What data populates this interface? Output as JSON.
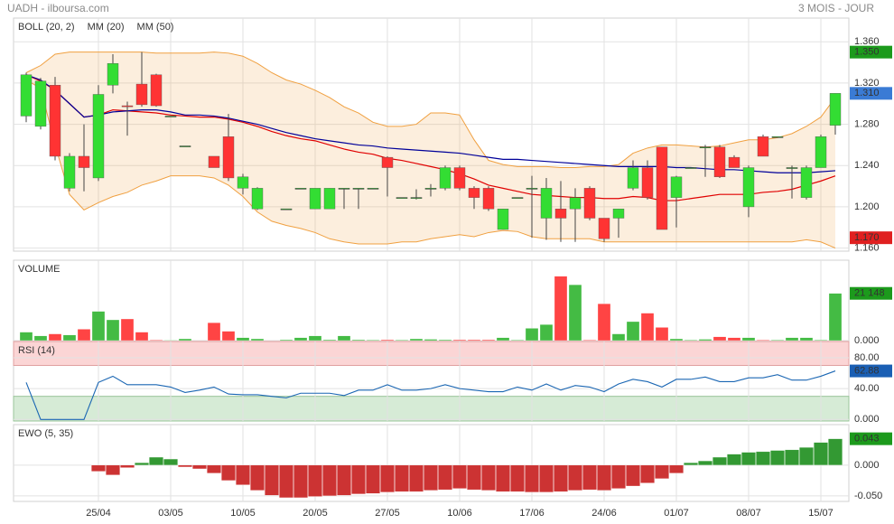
{
  "header": {
    "title": "UADH - ilboursa.com",
    "period": "3 MOIS - JOUR"
  },
  "chart_data": [
    {
      "type": "candlestick",
      "up_color": "#33dd33",
      "down_color": "#ff3333",
      "ylim": [
        1.157,
        1.383
      ],
      "yticks": [
        {
          "value": 1.36,
          "label": "1.360"
        },
        {
          "value": 1.32,
          "label": "1.320"
        },
        {
          "value": 1.28,
          "label": "1.280"
        },
        {
          "value": 1.24,
          "label": "1.240"
        },
        {
          "value": 1.2,
          "label": "1.200"
        },
        {
          "value": 1.16,
          "label": "1.160"
        }
      ],
      "open": [
        1.288,
        1.278,
        1.318,
        1.218,
        1.249,
        1.228,
        1.318,
        1.298,
        1.319,
        1.328,
        1.288,
        1.259,
        null,
        1.249,
        1.268,
        1.218,
        1.198,
        null,
        1.198,
        1.218,
        1.198,
        1.198,
        1.218,
        1.218,
        1.218,
        1.248,
        1.209,
        1.209,
        1.218,
        1.218,
        1.238,
        1.218,
        1.218,
        1.178,
        1.209,
        1.218,
        1.189,
        1.198,
        1.198,
        1.218,
        1.189,
        1.189,
        1.218,
        1.238,
        1.258,
        1.209,
        1.238,
        1.258,
        1.258,
        1.248,
        1.2,
        1.268,
        1.268,
        1.238,
        1.209,
        1.238,
        1.279
      ],
      "high": [
        1.33,
        1.325,
        1.326,
        1.252,
        1.28,
        1.318,
        1.348,
        1.302,
        1.35,
        1.329,
        1.288,
        1.259,
        null,
        1.249,
        1.29,
        1.232,
        1.219,
        null,
        1.198,
        1.218,
        1.218,
        1.218,
        1.218,
        1.218,
        1.218,
        1.249,
        1.209,
        1.217,
        1.222,
        1.24,
        1.24,
        1.22,
        1.22,
        1.198,
        1.209,
        1.23,
        1.228,
        1.225,
        1.218,
        1.22,
        1.189,
        1.198,
        1.245,
        1.245,
        1.258,
        1.23,
        1.238,
        1.26,
        1.26,
        1.25,
        1.24,
        1.27,
        1.268,
        1.24,
        1.24,
        1.27,
        1.31
      ],
      "low": [
        1.282,
        1.275,
        1.245,
        1.215,
        1.215,
        1.225,
        1.31,
        1.269,
        1.297,
        1.297,
        1.288,
        1.259,
        null,
        1.238,
        1.225,
        1.212,
        1.197,
        null,
        1.198,
        1.218,
        1.198,
        1.198,
        1.198,
        1.198,
        1.218,
        1.21,
        1.209,
        1.207,
        1.21,
        1.216,
        1.216,
        1.198,
        1.196,
        1.178,
        1.209,
        1.17,
        1.168,
        1.166,
        1.166,
        1.187,
        1.166,
        1.17,
        1.216,
        1.207,
        1.178,
        1.18,
        1.238,
        1.229,
        1.228,
        1.238,
        1.19,
        1.249,
        1.268,
        1.208,
        1.207,
        1.238,
        1.27
      ],
      "close": [
        1.328,
        1.322,
        1.249,
        1.249,
        1.238,
        1.309,
        1.339,
        1.297,
        1.299,
        1.298,
        1.288,
        1.259,
        null,
        1.238,
        1.228,
        1.229,
        1.218,
        null,
        1.198,
        1.218,
        1.218,
        1.218,
        1.218,
        1.218,
        1.218,
        1.238,
        1.209,
        1.209,
        1.218,
        1.238,
        1.218,
        1.209,
        1.198,
        1.198,
        1.209,
        1.218,
        1.218,
        1.189,
        1.209,
        1.189,
        1.169,
        1.198,
        1.238,
        1.209,
        1.178,
        1.229,
        1.238,
        1.258,
        1.229,
        1.238,
        1.238,
        1.249,
        1.268,
        1.238,
        1.238,
        1.268,
        1.31
      ],
      "series": [
        {
          "name": "BOLL (20, 2)",
          "color": "#f0a040",
          "upper": [
            1.33,
            1.337,
            1.348,
            1.35,
            1.35,
            1.35,
            1.35,
            1.35,
            1.35,
            1.349,
            1.349,
            1.349,
            1.349,
            1.35,
            1.349,
            1.346,
            1.339,
            1.33,
            1.323,
            1.319,
            1.313,
            1.306,
            1.297,
            1.291,
            1.282,
            1.278,
            1.278,
            1.28,
            1.291,
            1.291,
            1.289,
            1.265,
            1.245,
            1.241,
            1.239,
            1.239,
            1.239,
            1.238,
            1.238,
            1.239,
            1.239,
            1.241,
            1.252,
            1.257,
            1.26,
            1.26,
            1.259,
            1.258,
            1.259,
            1.262,
            1.265,
            1.265,
            1.267,
            1.271,
            1.278,
            1.287,
            1.306
          ],
          "lower": [
            1.323,
            1.315,
            1.26,
            1.212,
            1.197,
            1.204,
            1.21,
            1.214,
            1.221,
            1.225,
            1.23,
            1.23,
            1.23,
            1.228,
            1.221,
            1.21,
            1.195,
            1.186,
            1.182,
            1.179,
            1.175,
            1.169,
            1.166,
            1.164,
            1.164,
            1.164,
            1.166,
            1.166,
            1.169,
            1.171,
            1.173,
            1.171,
            1.175,
            1.177,
            1.176,
            1.171,
            1.169,
            1.169,
            1.169,
            1.169,
            1.166,
            1.166,
            1.166,
            1.166,
            1.166,
            1.166,
            1.166,
            1.166,
            1.166,
            1.166,
            1.166,
            1.166,
            1.166,
            1.166,
            1.168,
            1.166,
            1.16
          ]
        },
        {
          "name": "MM (20)",
          "color": "#e00000",
          "values": [
            1.328,
            1.322,
            1.313,
            1.3,
            1.287,
            1.289,
            1.294,
            1.293,
            1.292,
            1.291,
            1.289,
            1.288,
            1.287,
            1.287,
            1.285,
            1.282,
            1.278,
            1.273,
            1.269,
            1.266,
            1.264,
            1.26,
            1.256,
            1.253,
            1.251,
            1.247,
            1.245,
            1.242,
            1.239,
            1.236,
            1.232,
            1.227,
            1.221,
            1.218,
            1.215,
            1.212,
            1.211,
            1.21,
            1.209,
            1.209,
            1.208,
            1.208,
            1.21,
            1.209,
            1.206,
            1.206,
            1.208,
            1.21,
            1.212,
            1.212,
            1.212,
            1.214,
            1.215,
            1.217,
            1.221,
            1.225,
            1.23
          ]
        },
        {
          "name": "MM (50)",
          "color": "#000099",
          "values": [
            1.328,
            1.323,
            1.313,
            1.3,
            1.287,
            1.289,
            1.292,
            1.293,
            1.294,
            1.294,
            1.292,
            1.289,
            1.289,
            1.288,
            1.286,
            1.283,
            1.28,
            1.276,
            1.272,
            1.269,
            1.266,
            1.264,
            1.262,
            1.26,
            1.259,
            1.257,
            1.256,
            1.255,
            1.254,
            1.253,
            1.252,
            1.25,
            1.248,
            1.246,
            1.246,
            1.245,
            1.244,
            1.243,
            1.242,
            1.241,
            1.24,
            1.239,
            1.239,
            1.239,
            1.239,
            1.238,
            1.238,
            1.237,
            1.236,
            1.236,
            1.235,
            1.234,
            1.233,
            1.233,
            1.233,
            1.234,
            1.235
          ]
        }
      ],
      "last_labels": [
        {
          "value": 1.35,
          "label": "1.350",
          "color": "#1c9a1c"
        },
        {
          "value": 1.31,
          "label": "1.310",
          "color": "#3a7bd5"
        },
        {
          "value": 1.17,
          "label": "1.170",
          "color": "#e02020"
        }
      ]
    },
    {
      "type": "bar",
      "title": "VOLUME",
      "up_color": "#44bb44",
      "down_color": "#ff4444",
      "ylim": [
        0,
        36000
      ],
      "yticks": [
        {
          "value": 0,
          "label": "0.000"
        }
      ],
      "values": [
        3800,
        2100,
        3000,
        2500,
        5100,
        13100,
        9300,
        9700,
        3800,
        300,
        200,
        800,
        null,
        8000,
        4200,
        1300,
        800,
        null,
        400,
        1300,
        2100,
        400,
        2100,
        400,
        300,
        400,
        300,
        800,
        600,
        400,
        400,
        400,
        400,
        1300,
        300,
        5500,
        7200,
        28800,
        25000,
        300,
        16500,
        3000,
        8500,
        12300,
        5900,
        800,
        300,
        600,
        1700,
        1300,
        1300,
        300,
        300,
        1300,
        1300,
        300,
        21148
      ],
      "last_labels": [
        {
          "value": 21148,
          "label": "21 148",
          "color": "#1c9a1c"
        }
      ]
    },
    {
      "type": "line",
      "title": "RSI (14)",
      "color": "#1a66b3",
      "ylim": [
        -2,
        101
      ],
      "yticks": [
        {
          "value": 80,
          "label": "80.00"
        },
        {
          "value": 40,
          "label": "40.00"
        },
        {
          "value": 0,
          "label": "0.000"
        }
      ],
      "overbought": 70,
      "oversold": 30,
      "values": [
        48,
        0,
        0,
        0,
        0,
        48,
        56,
        45,
        45,
        45,
        42,
        35,
        38,
        42,
        33,
        32,
        32,
        30,
        28,
        34,
        34,
        34,
        31,
        38,
        38,
        45,
        38,
        38,
        40,
        45,
        40,
        38,
        36,
        36,
        42,
        38,
        46,
        38,
        44,
        42,
        36,
        46,
        52,
        49,
        42,
        52,
        52,
        55,
        49,
        49,
        54,
        54,
        58,
        51,
        51,
        56,
        62.88
      ],
      "last_labels": [
        {
          "value": 62.88,
          "label": "62.88",
          "color": "#1a5fb4"
        }
      ]
    },
    {
      "type": "bar",
      "title": "EWO (5, 35)",
      "up_color": "#339933",
      "down_color": "#cc3333",
      "ylim": [
        -0.059,
        0.066
      ],
      "yticks": [
        {
          "value": 0,
          "label": "0.000"
        },
        {
          "value": -0.05,
          "label": "-0.050"
        }
      ],
      "categories": [
        null,
        null,
        null,
        null,
        null,
        "25/04",
        null,
        null,
        null,
        null,
        "03/05",
        null,
        null,
        null,
        null,
        "10/05",
        null,
        null,
        null,
        null,
        "20/05",
        null,
        null,
        null,
        null,
        "27/05",
        null,
        null,
        null,
        null,
        "10/06",
        null,
        null,
        null,
        null,
        "17/06",
        null,
        null,
        null,
        null,
        "24/06",
        null,
        null,
        null,
        null,
        "01/07",
        null,
        null,
        null,
        null,
        "08/07",
        null,
        null,
        null,
        null,
        "15/07",
        null
      ],
      "values": [
        null,
        null,
        null,
        null,
        null,
        -0.01,
        -0.016,
        -0.004,
        0.004,
        0.013,
        0.01,
        -0.003,
        -0.006,
        -0.013,
        -0.025,
        -0.032,
        -0.041,
        -0.049,
        -0.053,
        -0.053,
        -0.051,
        -0.05,
        -0.049,
        -0.047,
        -0.046,
        -0.044,
        -0.043,
        -0.043,
        -0.041,
        -0.04,
        -0.038,
        -0.04,
        -0.041,
        -0.043,
        -0.043,
        -0.044,
        -0.044,
        -0.043,
        -0.041,
        -0.04,
        -0.041,
        -0.038,
        -0.034,
        -0.029,
        -0.022,
        -0.013,
        0.004,
        0.007,
        0.013,
        0.018,
        0.021,
        0.022,
        0.024,
        0.025,
        0.029,
        0.037,
        0.043
      ],
      "last_labels": [
        {
          "value": 0.043,
          "label": "0.043",
          "color": "#1c9a1c"
        }
      ]
    }
  ]
}
